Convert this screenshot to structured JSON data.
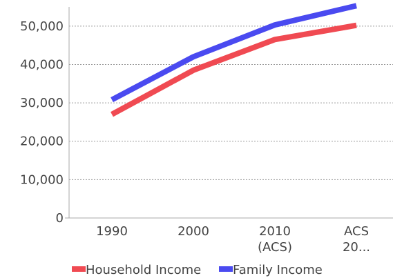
{
  "chart_data": {
    "type": "line",
    "categories": [
      {
        "line1": "1990",
        "line2": ""
      },
      {
        "line1": "2000",
        "line2": ""
      },
      {
        "line1": "2010",
        "line2": "(ACS)"
      },
      {
        "line1": "ACS",
        "line2": "20..."
      }
    ],
    "y_ticks": [
      "0",
      "10,000",
      "20,000",
      "30,000",
      "40,000",
      "50,000"
    ],
    "ylim": [
      0,
      55000
    ],
    "grid": true,
    "legend_position": "bottom",
    "series": [
      {
        "name": "Household Income",
        "color": "#f04a52",
        "values": [
          27000,
          38500,
          46500,
          50200
        ]
      },
      {
        "name": "Family Income",
        "color": "#4a4af0",
        "values": [
          30800,
          42000,
          50300,
          55300
        ]
      }
    ]
  }
}
